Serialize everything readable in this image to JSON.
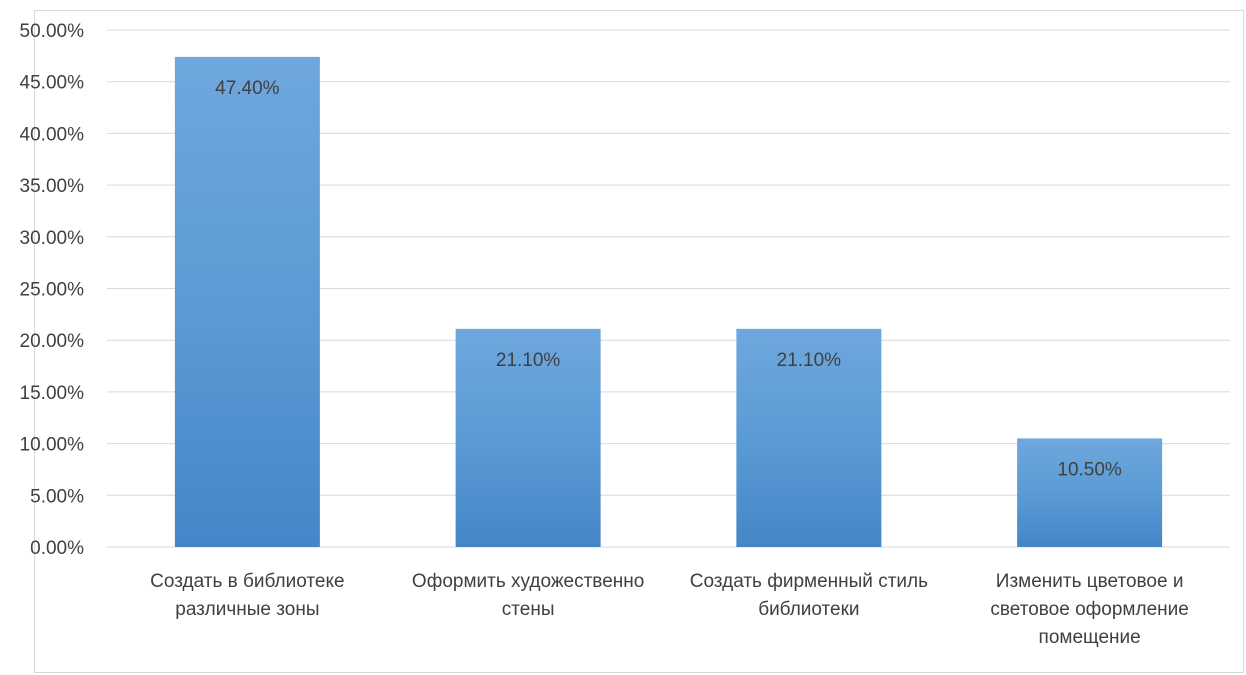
{
  "chart_data": {
    "type": "bar",
    "categories": [
      [
        "Создать в библиотеке",
        "различные зоны"
      ],
      [
        "Оформить художественно",
        "стены"
      ],
      [
        "Создать фирменный стиль",
        "библиотеки"
      ],
      [
        "Изменить цветовое и",
        "световое оформление",
        "помещение"
      ]
    ],
    "values": [
      0.474,
      0.211,
      0.211,
      0.105
    ],
    "data_labels": [
      "47.40%",
      "21.10%",
      "21.10%",
      "10.50%"
    ],
    "y_ticks": [
      "0.00%",
      "5.00%",
      "10.00%",
      "15.00%",
      "20.00%",
      "25.00%",
      "30.00%",
      "35.00%",
      "40.00%",
      "45.00%",
      "50.00%"
    ],
    "ylim": [
      0,
      0.5
    ],
    "grid": true,
    "legend": "none",
    "colors": {
      "bar_top": "#6fa7de",
      "bar_mid": "#5b9bd5",
      "bar_bottom": "#4586c8",
      "text": "#404040",
      "grid": "#d9d9d9"
    }
  }
}
